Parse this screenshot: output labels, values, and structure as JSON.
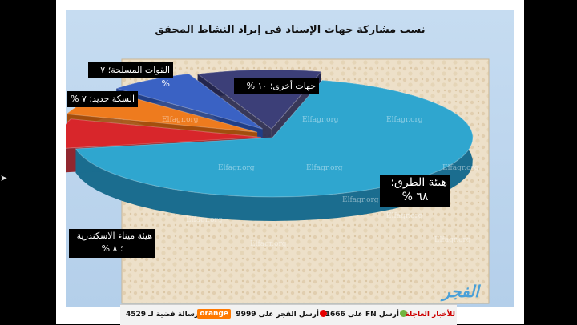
{
  "title": "نسب مشاركة جهات الإسناد فى إيراد النشاط المحقق",
  "watermark": "Elfagr.org",
  "chart_data": {
    "type": "pie",
    "title": "نسب مشاركة جهات الإسناد فى إيراد النشاط المحقق",
    "style": "3d-exploded",
    "slices": [
      {
        "label": "هيئة الطرق",
        "value": 68,
        "value_text": "٦٨ %",
        "color": "#2fa6cf",
        "side": "#1b6d8f"
      },
      {
        "label": "هيئة ميناء الاسكندرية",
        "value": 8,
        "value_text": "٨ %",
        "color": "#d8262b",
        "side": "#8c1419"
      },
      {
        "label": "السكة حديد",
        "value": 7,
        "value_text": "٧ %",
        "color": "#ee7b1e",
        "side": "#a34e0c"
      },
      {
        "label": "القوات المسلحة",
        "value": 7,
        "value_text": "٧ %",
        "color": "#3a62c4",
        "side": "#213e86"
      },
      {
        "label": "جهات أخرى",
        "value": 10,
        "value_text": "١٠ %",
        "color": "#3c3f78",
        "side": "#24264d"
      }
    ]
  },
  "callouts": {
    "roads": {
      "line1": "هيئة الطرق؛",
      "line2": "٦٨ %"
    },
    "alex": {
      "line1": "هيئة ميناء الاسكندرية",
      "line2": "؛ ٨ %"
    },
    "rail": {
      "line1": "السكة حديد؛ ٧ %"
    },
    "army": {
      "line1": "القوات المسلحة؛ ٧ %"
    },
    "other": {
      "line1": "جهات أخرى؛ ١٠ %"
    }
  },
  "ticker": {
    "sms": "رسالة فضية لـ 4529",
    "brand": "orange",
    "send": "أرسل الفجر على 9999",
    "fn": "أرسل FN على 1666",
    "news": "للأخبار العاجلة",
    "brand_color": "#ff7900",
    "vodafone_color": "#e60000",
    "etisalat_color": "#6fb43f"
  },
  "logo_text": "الفجر"
}
